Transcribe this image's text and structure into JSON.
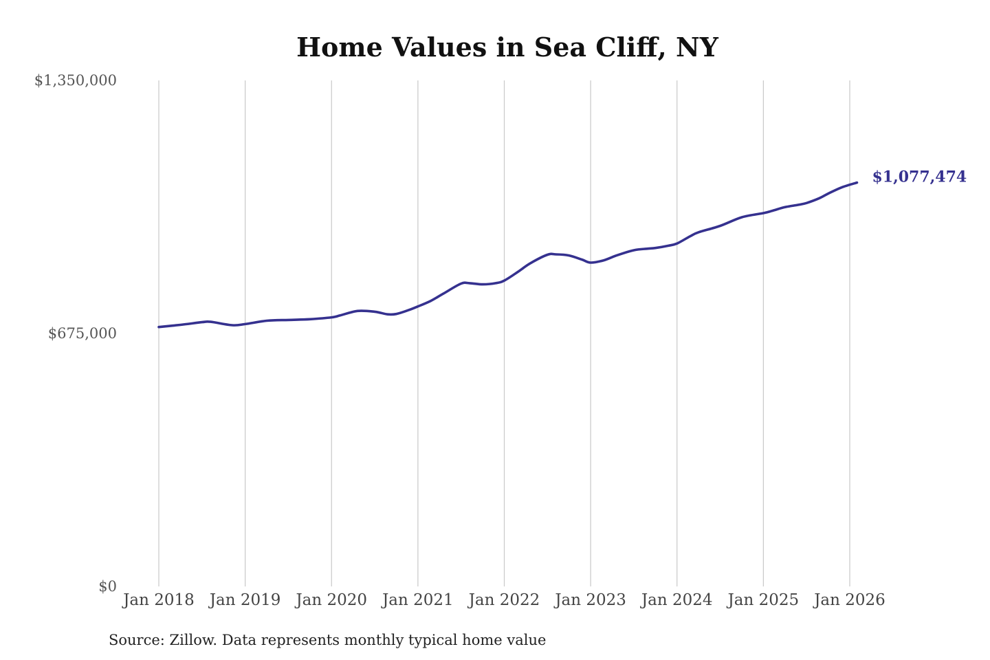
{
  "chart_data": {
    "type": "line",
    "title": "Home Values in Sea Cliff, NY",
    "ylim": [
      0,
      1350000
    ],
    "y_ticks": [
      {
        "value": 0,
        "label": "$0"
      },
      {
        "value": 675000,
        "label": "$675,000"
      },
      {
        "value": 1350000,
        "label": "$1,350,000"
      }
    ],
    "x_range": [
      2018.0,
      2026.0833
    ],
    "x_ticks": [
      {
        "value": 2018,
        "label": "Jan 2018"
      },
      {
        "value": 2019,
        "label": "Jan 2019"
      },
      {
        "value": 2020,
        "label": "Jan 2020"
      },
      {
        "value": 2021,
        "label": "Jan 2021"
      },
      {
        "value": 2022,
        "label": "Jan 2022"
      },
      {
        "value": 2023,
        "label": "Jan 2023"
      },
      {
        "value": 2024,
        "label": "Jan 2024"
      },
      {
        "value": 2025,
        "label": "Jan 2025"
      },
      {
        "value": 2026,
        "label": "Jan 2026"
      }
    ],
    "grid": "vertical",
    "line_color": "#35318f",
    "series": [
      {
        "x": [
          2018.0,
          2018.25,
          2018.5,
          2018.6,
          2018.85,
          2019.0,
          2019.25,
          2019.5,
          2019.75,
          2020.0,
          2020.1,
          2020.3,
          2020.5,
          2020.65,
          2020.75,
          2020.9,
          2021.0,
          2021.15,
          2021.3,
          2021.5,
          2021.6,
          2021.75,
          2021.9,
          2022.0,
          2022.15,
          2022.3,
          2022.5,
          2022.6,
          2022.75,
          2022.9,
          2023.0,
          2023.15,
          2023.3,
          2023.5,
          2023.65,
          2023.75,
          2023.9,
          2024.0,
          2024.15,
          2024.25,
          2024.5,
          2024.75,
          2025.0,
          2025.1,
          2025.25,
          2025.4,
          2025.5,
          2025.65,
          2025.75,
          2025.9,
          2026.0833
        ],
        "y": [
          692000,
          698000,
          705000,
          706000,
          697000,
          700000,
          709000,
          711000,
          713000,
          718000,
          723000,
          735000,
          733000,
          726000,
          727000,
          738000,
          747000,
          762000,
          782000,
          808000,
          809000,
          806000,
          809000,
          816000,
          838000,
          862000,
          885000,
          886000,
          883000,
          872000,
          864000,
          870000,
          883000,
          897000,
          901000,
          903000,
          909000,
          915000,
          934000,
          945000,
          962000,
          985000,
          996000,
          1002000,
          1012000,
          1018000,
          1023000,
          1036000,
          1048000,
          1064000,
          1077474
        ]
      }
    ],
    "end_label": "$1,077,474",
    "source": "Source: Zillow. Data represents monthly typical home value"
  }
}
